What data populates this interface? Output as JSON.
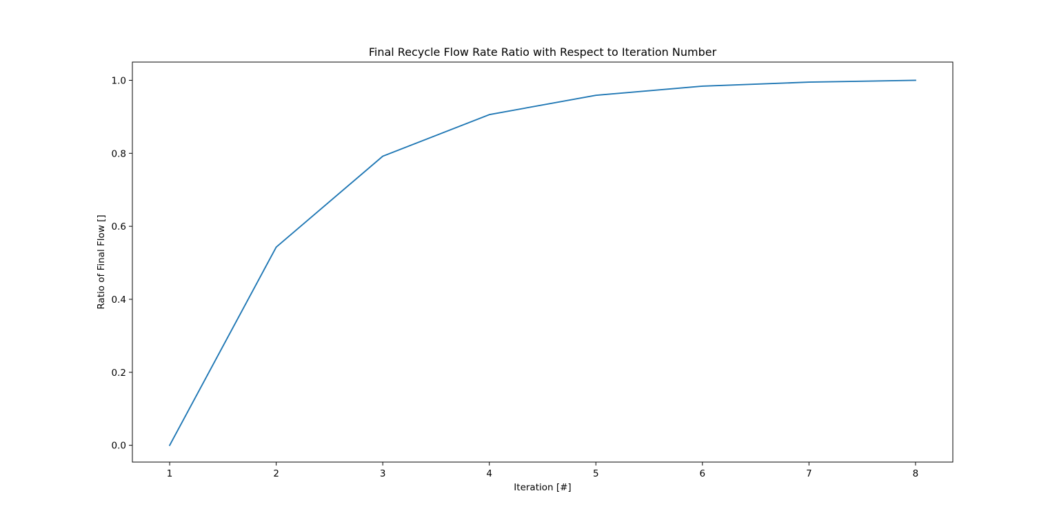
{
  "chart_data": {
    "type": "line",
    "title": "Final Recycle Flow Rate Ratio with Respect to Iteration Number",
    "xlabel": "Iteration [#]",
    "ylabel": "Ratio of Final Flow []",
    "x": [
      1,
      2,
      3,
      4,
      5,
      6,
      7,
      8
    ],
    "series": [
      {
        "values": [
          0.0,
          0.543,
          0.792,
          0.906,
          0.959,
          0.984,
          0.995,
          1.0
        ],
        "color": "#1f77b4"
      }
    ],
    "xlim": [
      0.65,
      8.35
    ],
    "ylim": [
      -0.046,
      1.05
    ],
    "xticks": [
      1,
      2,
      3,
      4,
      5,
      6,
      7,
      8
    ],
    "xtick_labels": [
      "1",
      "2",
      "3",
      "4",
      "5",
      "6",
      "7",
      "8"
    ],
    "yticks": [
      0.0,
      0.2,
      0.4,
      0.6,
      0.8,
      1.0
    ],
    "ytick_labels": [
      "0.0",
      "0.2",
      "0.4",
      "0.6",
      "0.8",
      "1.0"
    ],
    "grid": false,
    "legend": false
  }
}
